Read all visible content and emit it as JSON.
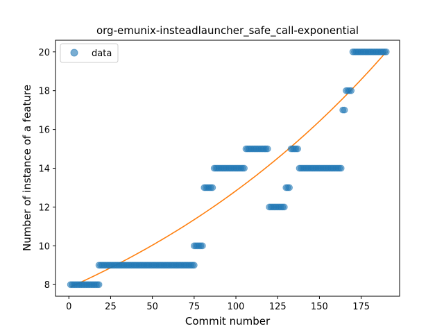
{
  "chart_data": {
    "type": "scatter",
    "title": "org-emunix-insteadlauncher_safe_call-exponential",
    "xlabel": "Commit number",
    "ylabel": "Number of instance of a feature",
    "xlim": [
      -8,
      198
    ],
    "ylim": [
      7.4,
      20.6
    ],
    "xticks": [
      0,
      25,
      50,
      75,
      100,
      125,
      150,
      175
    ],
    "yticks": [
      8,
      10,
      12,
      14,
      16,
      18,
      20
    ],
    "grid": false,
    "legend": {
      "position": "top-left",
      "entries": [
        "data"
      ]
    },
    "colors": {
      "data": "#1f77b4",
      "fit": "#ff7f0e"
    },
    "series": [
      {
        "name": "data",
        "kind": "scatter",
        "runs": [
          {
            "x_start": 1,
            "x_end": 18,
            "y": 8
          },
          {
            "x_start": 18,
            "x_end": 75,
            "y": 9
          },
          {
            "x_start": 75,
            "x_end": 80,
            "y": 10
          },
          {
            "x_start": 81,
            "x_end": 86,
            "y": 13
          },
          {
            "x_start": 87,
            "x_end": 105,
            "y": 14
          },
          {
            "x_start": 106,
            "x_end": 119,
            "y": 15
          },
          {
            "x_start": 120,
            "x_end": 129,
            "y": 12
          },
          {
            "x_start": 130,
            "x_end": 132,
            "y": 13
          },
          {
            "x_start": 133,
            "x_end": 137,
            "y": 15
          },
          {
            "x_start": 138,
            "x_end": 163,
            "y": 14
          },
          {
            "x_start": 164,
            "x_end": 165,
            "y": 17
          },
          {
            "x_start": 166,
            "x_end": 169,
            "y": 18
          },
          {
            "x_start": 170,
            "x_end": 190,
            "y": 20
          }
        ]
      },
      {
        "name": "exponential fit",
        "kind": "line",
        "x_range": [
          1,
          190
        ],
        "y_start": 7.88,
        "y_end": 20.0
      }
    ]
  }
}
